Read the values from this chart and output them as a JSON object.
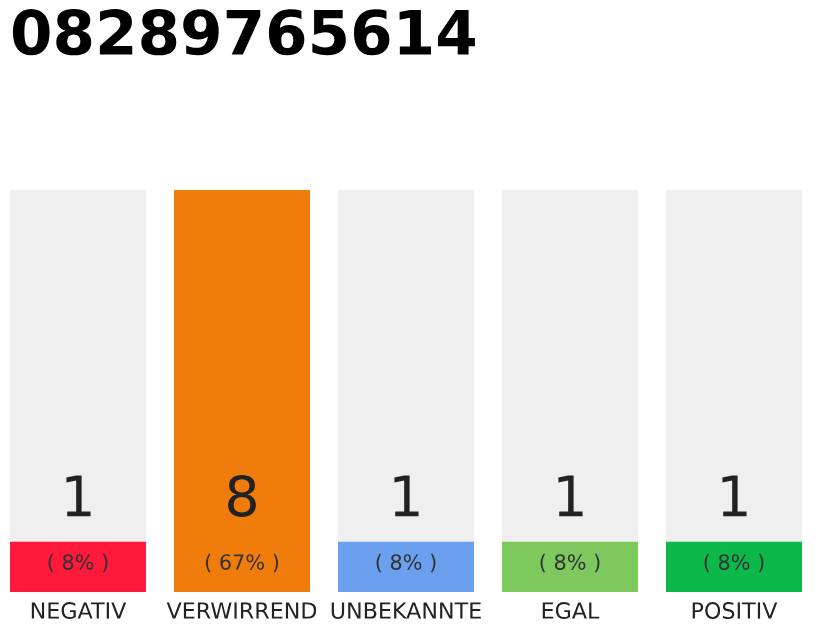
{
  "chart_data": {
    "type": "bar",
    "title": "08289765614",
    "categories": [
      "NEGATIV",
      "VERWIRREND",
      "UNBEKANNTE",
      "EGAL",
      "POSITIV"
    ],
    "values": [
      1,
      8,
      1,
      1,
      1
    ],
    "colors": [
      "#ff1a3c",
      "#f07c0c",
      "#6aa0ee",
      "#7dc95e",
      "#0db84a"
    ],
    "value_labels": [
      "1",
      "8",
      "1",
      "1",
      "1"
    ],
    "annotations": [
      "( 8% )",
      "( 67% )",
      "( 8% )",
      "( 8% )",
      "( 8% )"
    ],
    "grid": false
  }
}
